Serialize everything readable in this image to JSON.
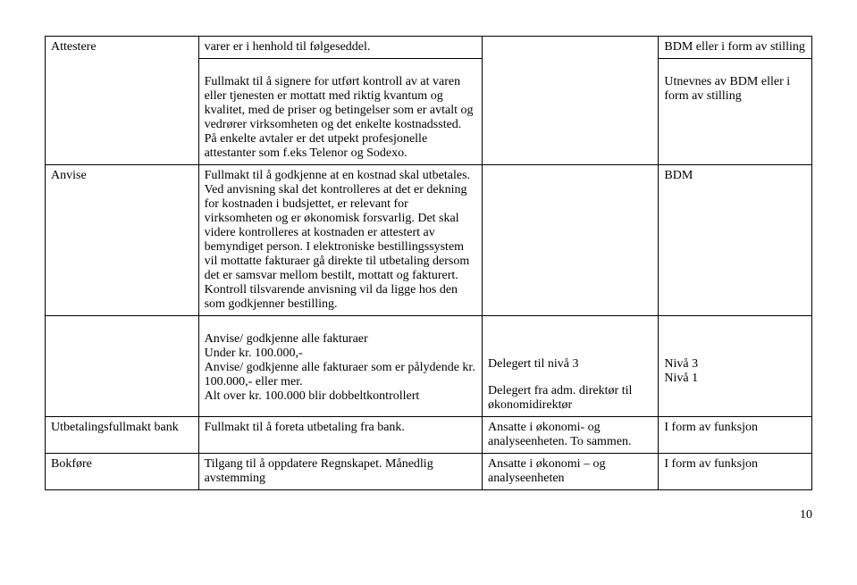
{
  "rows": [
    {
      "c1": "",
      "c2": "varer er i henhold til følgeseddel.",
      "c3": "",
      "c4": "BDM eller i form av stilling"
    },
    {
      "c1": "Attestere",
      "c2": "Fullmakt til å signere for utført kontroll av at varen eller tjenesten er mottatt med riktig kvantum og kvalitet, med de priser og betingelser som er avtalt og vedrører virksomheten og det enkelte kostnadssted. På enkelte avtaler er det utpekt profesjonelle attestanter som f.eks Telenor og Sodexo.",
      "c3": "",
      "c4": "Utnevnes av BDM eller i form av stilling"
    },
    {
      "c1": "Anvise",
      "c2": "Fullmakt til å godkjenne at en kostnad skal utbetales. Ved anvisning skal det kontrolleres at det er dekning for kostnaden i budsjettet, er relevant for virksomheten og er økonomisk forsvarlig. Det skal videre kontrolleres at kostnaden er attestert av bemyndiget person. I elektroniske bestillingssystem vil mottatte fakturaer gå direkte til utbetaling dersom det er samsvar mellom bestilt, mottatt og fakturert. Kontroll tilsvarende anvisning vil da ligge hos den som godkjenner bestilling.",
      "c3": "",
      "c4": "BDM"
    },
    {
      "c1": "",
      "c2_a": "Anvise/ godkjenne alle fakturaer",
      "c2_b": "Under kr. 100.000,-",
      "c2_c": "Anvise/ godkjenne alle fakturaer som er pålydende kr. 100.000,- eller mer.",
      "c2_d": "Alt over kr. 100.000 blir dobbeltkontrollert",
      "c3_a": "Delegert til nivå 3",
      "c3_b": "Delegert fra adm. direktør til økonomidirektør",
      "c4_a": "Nivå 3",
      "c4_b": "Nivå 1"
    },
    {
      "c1": "Utbetalingsfullmakt bank",
      "c2": "Fullmakt til å foreta utbetaling fra bank.",
      "c3": "Ansatte i økonomi- og analyseenheten. To sammen.",
      "c4": "I form av funksjon"
    },
    {
      "c1": "Bokføre",
      "c2": "Tilgang til å oppdatere Regnskapet. Månedlig avstemming",
      "c3": "Ansatte i økonomi – og analyseenheten",
      "c4": "I form av funksjon"
    }
  ],
  "pagenum": "10"
}
